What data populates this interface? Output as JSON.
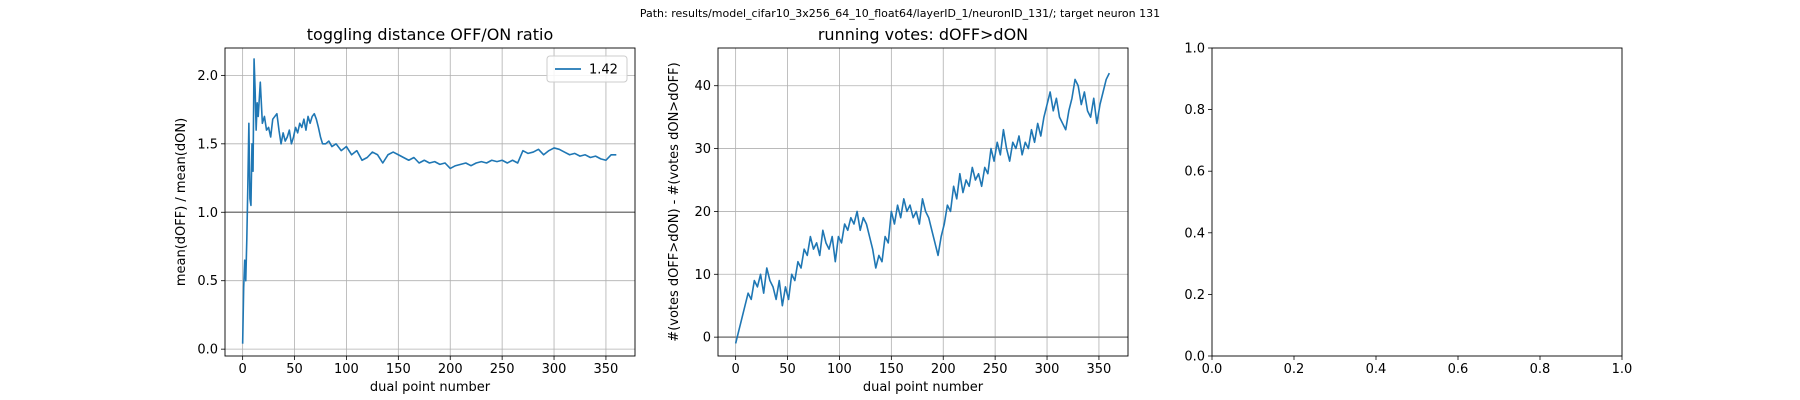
{
  "suptitle": "Path: results/model_cifar10_3x256_64_10_float64/layerID_1/neuronID_131/; target neuron 131",
  "chart_data": [
    {
      "type": "line",
      "title": "toggling distance OFF/ON ratio",
      "xlabel": "dual point number",
      "ylabel": "mean(dOFF) / mean(dON)",
      "xlim": [
        -17,
        378
      ],
      "ylim": [
        -0.05,
        2.2
      ],
      "xticks": [
        0,
        50,
        100,
        150,
        200,
        250,
        300,
        350
      ],
      "yticks": [
        0.0,
        0.5,
        1.0,
        1.5,
        2.0
      ],
      "ytick_labels": [
        "0.0",
        "0.5",
        "1.0",
        "1.5",
        "2.0"
      ],
      "grid": true,
      "hline": 1.0,
      "legend": {
        "location": "top-right",
        "entries": [
          "1.42"
        ]
      },
      "series": [
        {
          "name": "1.42",
          "color": "#1f77b4",
          "x": [
            0,
            1,
            2,
            3,
            4,
            5,
            6,
            7,
            8,
            9,
            10,
            11,
            12,
            13,
            14,
            15,
            17,
            19,
            21,
            23,
            25,
            27,
            29,
            31,
            33,
            35,
            37,
            39,
            41,
            43,
            45,
            47,
            49,
            51,
            53,
            55,
            57,
            59,
            61,
            63,
            65,
            67,
            69,
            71,
            73,
            75,
            77,
            80,
            83,
            86,
            90,
            95,
            100,
            105,
            110,
            115,
            120,
            125,
            130,
            135,
            140,
            145,
            150,
            155,
            160,
            165,
            170,
            175,
            180,
            185,
            190,
            195,
            200,
            205,
            210,
            215,
            220,
            225,
            230,
            235,
            240,
            245,
            250,
            255,
            260,
            265,
            270,
            275,
            280,
            285,
            290,
            295,
            300,
            305,
            310,
            315,
            320,
            325,
            330,
            335,
            340,
            345,
            350,
            355,
            360
          ],
          "y": [
            0.04,
            0.45,
            0.65,
            0.5,
            0.8,
            1.2,
            1.65,
            1.1,
            1.05,
            1.5,
            1.3,
            2.12,
            1.9,
            1.6,
            1.8,
            1.7,
            1.95,
            1.65,
            1.7,
            1.6,
            1.62,
            1.55,
            1.68,
            1.7,
            1.72,
            1.6,
            1.5,
            1.58,
            1.52,
            1.55,
            1.6,
            1.5,
            1.55,
            1.62,
            1.58,
            1.65,
            1.62,
            1.68,
            1.6,
            1.7,
            1.65,
            1.7,
            1.72,
            1.68,
            1.62,
            1.55,
            1.5,
            1.5,
            1.52,
            1.48,
            1.5,
            1.45,
            1.48,
            1.42,
            1.45,
            1.38,
            1.4,
            1.44,
            1.42,
            1.36,
            1.42,
            1.44,
            1.42,
            1.4,
            1.38,
            1.4,
            1.36,
            1.38,
            1.36,
            1.37,
            1.35,
            1.36,
            1.32,
            1.34,
            1.35,
            1.36,
            1.34,
            1.36,
            1.37,
            1.36,
            1.38,
            1.37,
            1.38,
            1.36,
            1.38,
            1.36,
            1.45,
            1.43,
            1.44,
            1.46,
            1.42,
            1.45,
            1.47,
            1.46,
            1.44,
            1.42,
            1.43,
            1.41,
            1.42,
            1.4,
            1.41,
            1.39,
            1.38,
            1.42,
            1.42
          ]
        }
      ]
    },
    {
      "type": "line",
      "title": "running votes: dOFF>dON",
      "xlabel": "dual point number",
      "ylabel": "#(votes dOFF>dON) - #(votes dON>dOFF)",
      "xlim": [
        -17,
        378
      ],
      "ylim": [
        -3,
        46
      ],
      "xticks": [
        0,
        50,
        100,
        150,
        200,
        250,
        300,
        350
      ],
      "yticks": [
        0,
        10,
        20,
        30,
        40
      ],
      "ytick_labels": [
        "0",
        "10",
        "20",
        "30",
        "40"
      ],
      "grid": true,
      "hline": 0,
      "series": [
        {
          "color": "#1f77b4",
          "x": [
            0,
            3,
            6,
            9,
            12,
            15,
            18,
            21,
            24,
            27,
            30,
            33,
            36,
            39,
            42,
            45,
            48,
            51,
            54,
            57,
            60,
            63,
            66,
            69,
            72,
            75,
            78,
            81,
            84,
            87,
            90,
            93,
            96,
            99,
            102,
            105,
            108,
            111,
            114,
            117,
            120,
            123,
            126,
            129,
            132,
            135,
            138,
            141,
            144,
            147,
            150,
            153,
            156,
            159,
            162,
            165,
            168,
            171,
            174,
            177,
            180,
            183,
            186,
            189,
            192,
            195,
            198,
            201,
            204,
            207,
            210,
            213,
            216,
            219,
            222,
            225,
            228,
            231,
            234,
            237,
            240,
            243,
            246,
            249,
            252,
            255,
            258,
            261,
            264,
            267,
            270,
            273,
            276,
            279,
            282,
            285,
            288,
            291,
            294,
            297,
            300,
            303,
            306,
            309,
            312,
            315,
            318,
            321,
            324,
            327,
            330,
            333,
            336,
            339,
            342,
            345,
            348,
            351,
            354,
            357,
            360
          ],
          "y": [
            -1,
            1,
            3,
            5,
            7,
            6,
            9,
            8,
            10,
            7,
            11,
            9,
            8,
            6,
            9,
            5,
            8,
            6,
            10,
            9,
            12,
            11,
            14,
            13,
            16,
            14,
            15,
            13,
            17,
            15,
            14,
            16,
            12,
            16,
            15,
            18,
            17,
            19,
            18,
            20,
            17,
            19,
            18,
            16,
            14,
            11,
            13,
            12,
            16,
            15,
            20,
            18,
            21,
            19,
            22,
            20,
            21,
            19,
            20,
            18,
            22,
            20,
            19,
            17,
            15,
            13,
            16,
            18,
            21,
            20,
            24,
            22,
            26,
            23,
            25,
            24,
            27,
            25,
            26,
            24,
            27,
            26,
            30,
            28,
            31,
            29,
            33,
            30,
            28,
            31,
            30,
            32,
            29,
            31,
            30,
            33,
            31,
            34,
            32,
            35,
            37,
            39,
            36,
            38,
            35,
            34,
            33,
            36,
            38,
            41,
            40,
            37,
            39,
            36,
            35,
            38,
            34,
            37,
            39,
            41,
            42
          ]
        }
      ]
    },
    {
      "type": "line",
      "title": "",
      "xlabel": "",
      "ylabel": "",
      "xlim": [
        0,
        1
      ],
      "ylim": [
        0,
        1
      ],
      "xticks": [
        0.0,
        0.2,
        0.4,
        0.6,
        0.8,
        1.0
      ],
      "xtick_labels": [
        "0.0",
        "0.2",
        "0.4",
        "0.6",
        "0.8",
        "1.0"
      ],
      "yticks": [
        0.0,
        0.2,
        0.4,
        0.6,
        0.8,
        1.0
      ],
      "ytick_labels": [
        "0.0",
        "0.2",
        "0.4",
        "0.6",
        "0.8",
        "1.0"
      ],
      "grid": false,
      "series": []
    }
  ]
}
